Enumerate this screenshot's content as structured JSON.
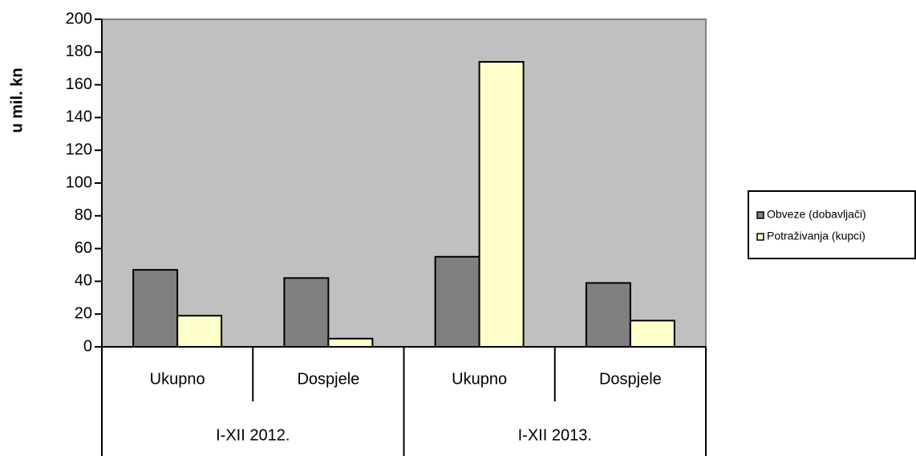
{
  "chart_data": {
    "type": "bar",
    "ylabel": "u mil. kn",
    "categories": [
      "Ukupno",
      "Dospjele",
      "Ukupno",
      "Dospjele"
    ],
    "category_groups": [
      "I-XII 2012.",
      "I-XII 2013."
    ],
    "series": [
      {
        "name": "Obveze (dobavljači)",
        "color": "#808080",
        "values": [
          47,
          42,
          55,
          39
        ]
      },
      {
        "name": "Potraživanja (kupci)",
        "color": "#ffffcc",
        "values": [
          19,
          5,
          174,
          16
        ]
      }
    ],
    "ylim": [
      0,
      200
    ],
    "yticks": [
      0,
      20,
      40,
      60,
      80,
      100,
      120,
      140,
      160,
      180,
      200
    ],
    "legend": "right"
  }
}
